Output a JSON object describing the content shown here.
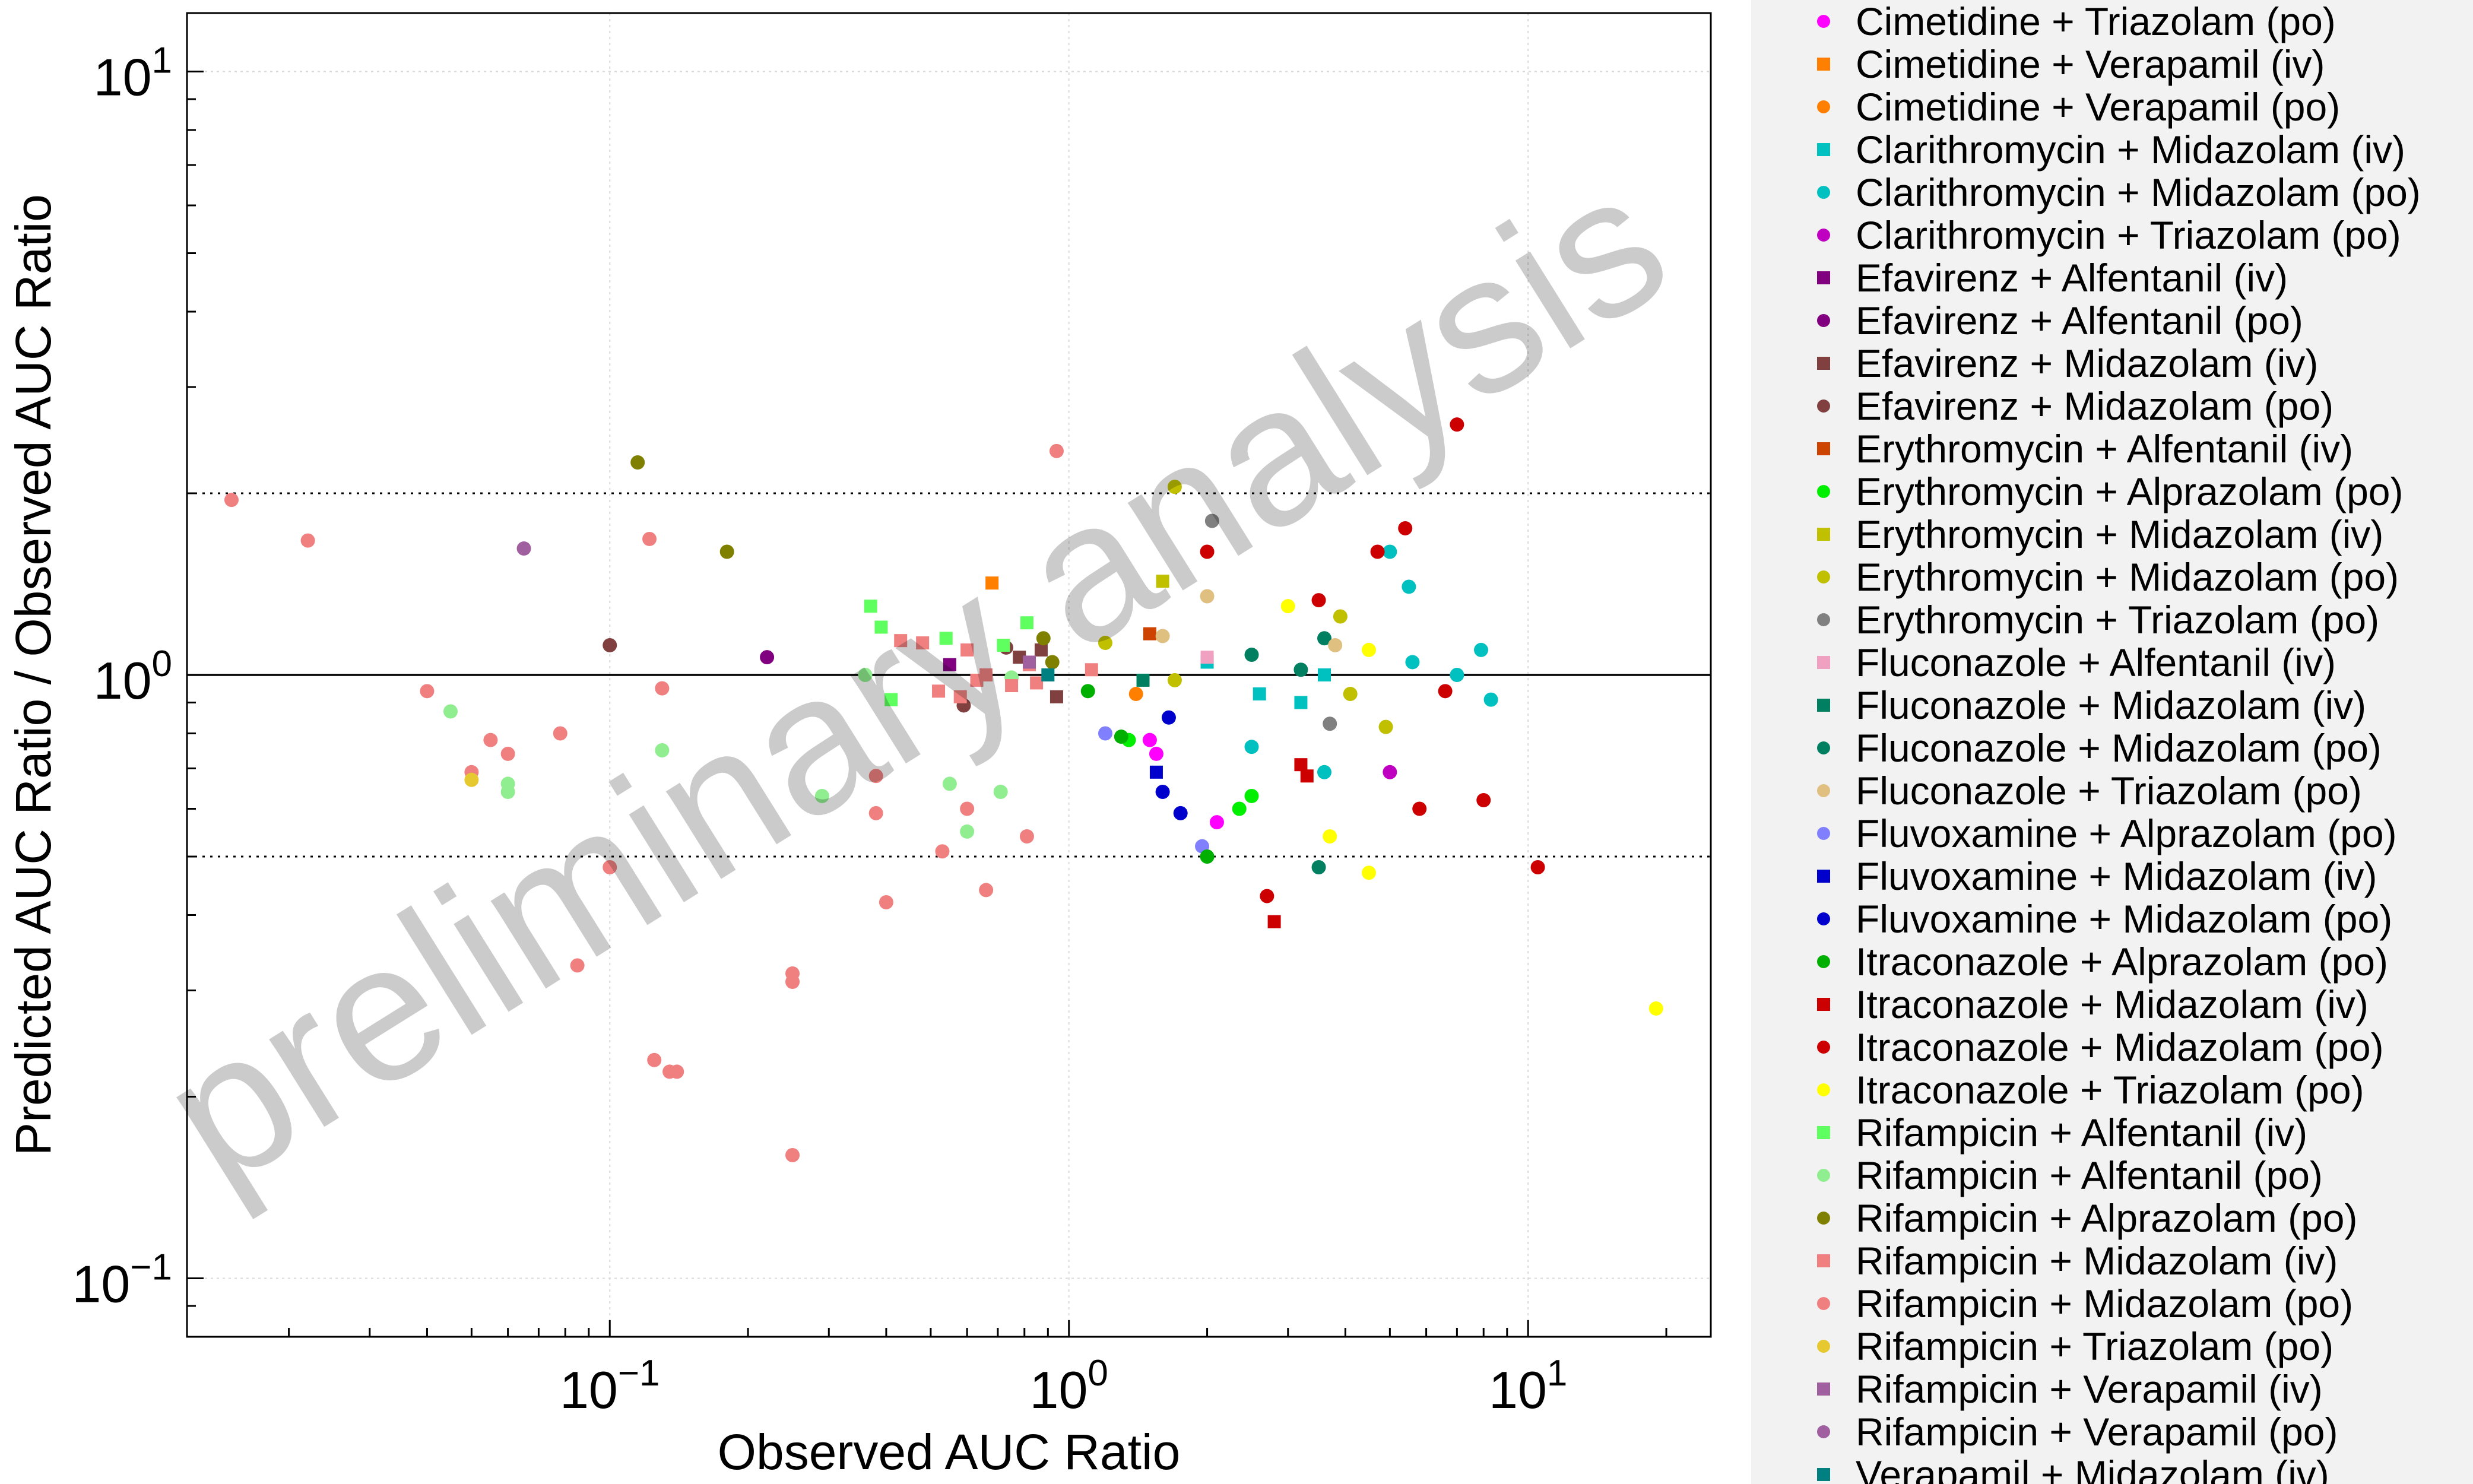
{
  "chart_data": {
    "type": "scatter",
    "xlabel": "Observed AUC Ratio",
    "ylabel": "Predicted AUC Ratio / Observed AUC Ratio",
    "xscale": "log",
    "yscale": "log",
    "xlim": [
      0.012,
      25
    ],
    "ylim": [
      0.08,
      12.5
    ],
    "grid": true,
    "legend_position": "right, outside plot",
    "x_ticks": [
      {
        "value": 0.1,
        "base": "10",
        "exp": "−1"
      },
      {
        "value": 1,
        "base": "10",
        "exp": "0"
      },
      {
        "value": 10,
        "base": "10",
        "exp": "1"
      }
    ],
    "y_ticks": [
      {
        "value": 0.1,
        "base": "10",
        "exp": "−1"
      },
      {
        "value": 1,
        "base": "10",
        "exp": "0"
      },
      {
        "value": 10,
        "base": "10",
        "exp": "1"
      }
    ],
    "reference_lines": {
      "unity": 1,
      "dotted_bounds": [
        0.5,
        2
      ],
      "guest_curves": true
    },
    "watermark": "preliminary analysis",
    "series": [
      {
        "name": "Cimetidine + Triazolam (po)",
        "color": "#ff00ff",
        "marker": "circle",
        "points": [
          [
            1.5,
            0.78
          ],
          [
            1.55,
            0.74
          ],
          [
            2.1,
            0.57
          ]
        ]
      },
      {
        "name": "Cimetidine + Verapamil (iv)",
        "color": "#ff7f00",
        "marker": "square",
        "points": [
          [
            0.68,
            1.42
          ]
        ]
      },
      {
        "name": "Cimetidine + Verapamil (po)",
        "color": "#ff7f00",
        "marker": "circle",
        "points": [
          [
            1.4,
            0.93
          ]
        ]
      },
      {
        "name": "Clarithromycin + Midazolam (iv)",
        "color": "#00c0c0",
        "marker": "square",
        "points": [
          [
            2.0,
            1.05
          ],
          [
            2.6,
            0.93
          ],
          [
            3.2,
            0.9
          ],
          [
            3.6,
            1.0
          ]
        ]
      },
      {
        "name": "Clarithromycin + Midazolam (po)",
        "color": "#00c0c0",
        "marker": "circle",
        "points": [
          [
            5.0,
            1.6
          ],
          [
            5.5,
            1.4
          ],
          [
            5.6,
            1.05
          ],
          [
            7.0,
            1.0
          ],
          [
            7.9,
            1.1
          ],
          [
            8.3,
            0.91
          ],
          [
            2.5,
            0.76
          ],
          [
            3.6,
            0.69
          ]
        ]
      },
      {
        "name": "Clarithromycin + Triazolam (po)",
        "color": "#c000c0",
        "marker": "circle",
        "points": [
          [
            5.0,
            0.69
          ]
        ]
      },
      {
        "name": "Efavirenz + Alfentanil (iv)",
        "color": "#800080",
        "marker": "square",
        "points": [
          [
            0.55,
            1.04
          ]
        ]
      },
      {
        "name": "Efavirenz + Alfentanil (po)",
        "color": "#800080",
        "marker": "circle",
        "points": [
          [
            0.22,
            1.07
          ]
        ]
      },
      {
        "name": "Efavirenz + Midazolam (iv)",
        "color": "#804040",
        "marker": "square",
        "points": [
          [
            0.78,
            1.07
          ],
          [
            0.94,
            0.92
          ],
          [
            0.87,
            1.1
          ]
        ]
      },
      {
        "name": "Efavirenz + Midazolam (po)",
        "color": "#804040",
        "marker": "circle",
        "points": [
          [
            0.1,
            1.12
          ],
          [
            0.59,
            0.89
          ],
          [
            0.73,
            1.11
          ]
        ]
      },
      {
        "name": "Erythromycin + Alfentanil (iv)",
        "color": "#cc4400",
        "marker": "square",
        "points": [
          [
            1.5,
            1.17
          ]
        ]
      },
      {
        "name": "Erythromycin + Alprazolam (po)",
        "color": "#00ee00",
        "marker": "circle",
        "points": [
          [
            1.35,
            0.78
          ],
          [
            2.35,
            0.6
          ],
          [
            2.5,
            0.63
          ]
        ]
      },
      {
        "name": "Erythromycin + Midazolam (iv)",
        "color": "#c0c000",
        "marker": "square",
        "points": [
          [
            1.6,
            1.43
          ]
        ]
      },
      {
        "name": "Erythromycin + Midazolam (po)",
        "color": "#c0c000",
        "marker": "circle",
        "points": [
          [
            1.7,
            2.05
          ],
          [
            1.7,
            0.98
          ],
          [
            1.2,
            1.13
          ],
          [
            3.9,
            1.25
          ],
          [
            4.1,
            0.93
          ],
          [
            4.9,
            0.82
          ]
        ]
      },
      {
        "name": "Erythromycin + Triazolam (po)",
        "color": "#808080",
        "marker": "circle",
        "points": [
          [
            2.05,
            1.8
          ],
          [
            3.7,
            0.83
          ]
        ]
      },
      {
        "name": "Fluconazole + Alfentanil (iv)",
        "color": "#f0a0c0",
        "marker": "square",
        "points": [
          [
            2.0,
            1.07
          ]
        ]
      },
      {
        "name": "Fluconazole + Midazolam (iv)",
        "color": "#008060",
        "marker": "square",
        "points": [
          [
            1.45,
            0.98
          ]
        ]
      },
      {
        "name": "Fluconazole + Midazolam (po)",
        "color": "#008060",
        "marker": "circle",
        "points": [
          [
            2.5,
            1.08
          ],
          [
            3.2,
            1.02
          ],
          [
            3.6,
            1.15
          ],
          [
            3.5,
            0.48
          ]
        ]
      },
      {
        "name": "Fluconazole + Triazolam (po)",
        "color": "#e0c080",
        "marker": "circle",
        "points": [
          [
            1.6,
            1.16
          ],
          [
            2.0,
            1.35
          ],
          [
            3.8,
            1.12
          ]
        ]
      },
      {
        "name": "Fluvoxamine + Alprazolam (po)",
        "color": "#8080ff",
        "marker": "circle",
        "points": [
          [
            1.2,
            0.8
          ],
          [
            1.95,
            0.52
          ]
        ]
      },
      {
        "name": "Fluvoxamine + Midazolam (iv)",
        "color": "#0000cc",
        "marker": "square",
        "points": [
          [
            1.55,
            0.69
          ]
        ]
      },
      {
        "name": "Fluvoxamine + Midazolam (po)",
        "color": "#0000cc",
        "marker": "circle",
        "points": [
          [
            1.65,
            0.85
          ],
          [
            1.6,
            0.64
          ],
          [
            1.75,
            0.59
          ]
        ]
      },
      {
        "name": "Itraconazole + Alprazolam (po)",
        "color": "#00b000",
        "marker": "circle",
        "points": [
          [
            1.1,
            0.94
          ],
          [
            1.3,
            0.79
          ],
          [
            2.0,
            0.5
          ]
        ]
      },
      {
        "name": "Itraconazole + Midazolam (iv)",
        "color": "#cc0000",
        "marker": "square",
        "points": [
          [
            2.8,
            0.39
          ],
          [
            3.2,
            0.71
          ],
          [
            3.3,
            0.68
          ]
        ]
      },
      {
        "name": "Itraconazole + Midazolam (po)",
        "color": "#cc0000",
        "marker": "circle",
        "points": [
          [
            2.0,
            1.6
          ],
          [
            2.7,
            0.43
          ],
          [
            3.5,
            1.33
          ],
          [
            4.7,
            1.6
          ],
          [
            5.4,
            1.75
          ],
          [
            5.8,
            0.6
          ],
          [
            6.6,
            0.94
          ],
          [
            7.0,
            2.6
          ],
          [
            8.0,
            0.62
          ],
          [
            10.5,
            0.48
          ]
        ]
      },
      {
        "name": "Itraconazole + Triazolam (po)",
        "color": "#ffff00",
        "marker": "circle",
        "points": [
          [
            3.0,
            1.3
          ],
          [
            4.5,
            1.1
          ],
          [
            3.7,
            0.54
          ],
          [
            4.5,
            0.47
          ],
          [
            19.0,
            0.28
          ]
        ]
      },
      {
        "name": "Rifampicin + Alfentanil (iv)",
        "color": "#60ff60",
        "marker": "square",
        "points": [
          [
            0.37,
            1.3
          ],
          [
            0.39,
            1.2
          ],
          [
            0.54,
            1.15
          ],
          [
            0.72,
            1.12
          ],
          [
            0.41,
            0.91
          ],
          [
            0.81,
            1.22
          ]
        ]
      },
      {
        "name": "Rifampicin + Alfentanil (po)",
        "color": "#90ee90",
        "marker": "circle",
        "points": [
          [
            0.045,
            0.87
          ],
          [
            0.06,
            0.66
          ],
          [
            0.06,
            0.64
          ],
          [
            0.13,
            0.75
          ],
          [
            0.29,
            0.63
          ],
          [
            0.36,
            1.0
          ],
          [
            0.55,
            0.66
          ],
          [
            0.6,
            0.55
          ],
          [
            0.71,
            0.64
          ],
          [
            0.75,
            0.99
          ]
        ]
      },
      {
        "name": "Rifampicin + Alprazolam (po)",
        "color": "#808000",
        "marker": "circle",
        "points": [
          [
            0.115,
            2.25
          ],
          [
            0.18,
            1.6
          ],
          [
            0.88,
            1.15
          ],
          [
            0.92,
            1.05
          ]
        ]
      },
      {
        "name": "Rifampicin + Midazolam (iv)",
        "color": "#f08080",
        "marker": "square",
        "points": [
          [
            0.43,
            1.14
          ],
          [
            0.48,
            1.13
          ],
          [
            0.52,
            0.94
          ],
          [
            0.58,
            0.92
          ],
          [
            0.6,
            1.1
          ],
          [
            0.63,
            0.98
          ],
          [
            0.66,
            1.0
          ],
          [
            0.75,
            0.96
          ],
          [
            0.82,
            1.04
          ],
          [
            0.85,
            0.97
          ],
          [
            1.12,
            1.02
          ]
        ]
      },
      {
        "name": "Rifampicin + Midazolam (po)",
        "color": "#f08080",
        "marker": "circle",
        "points": [
          [
            0.015,
            1.95
          ],
          [
            0.022,
            1.67
          ],
          [
            0.04,
            0.94
          ],
          [
            0.05,
            0.69
          ],
          [
            0.055,
            0.78
          ],
          [
            0.06,
            0.74
          ],
          [
            0.078,
            0.8
          ],
          [
            0.085,
            0.33
          ],
          [
            0.1,
            0.48
          ],
          [
            0.122,
            1.68
          ],
          [
            0.125,
            0.23
          ],
          [
            0.13,
            0.95
          ],
          [
            0.135,
            0.22
          ],
          [
            0.14,
            0.22
          ],
          [
            0.25,
            0.32
          ],
          [
            0.25,
            0.31
          ],
          [
            0.25,
            0.16
          ],
          [
            0.38,
            0.68
          ],
          [
            0.38,
            0.59
          ],
          [
            0.4,
            0.42
          ],
          [
            0.53,
            0.51
          ],
          [
            0.6,
            0.6
          ],
          [
            0.66,
            0.44
          ],
          [
            0.81,
            0.54
          ],
          [
            0.94,
            2.35
          ]
        ]
      },
      {
        "name": "Rifampicin + Triazolam (po)",
        "color": "#e6c830",
        "marker": "circle",
        "points": [
          [
            0.05,
            0.67
          ]
        ]
      },
      {
        "name": "Rifampicin + Verapamil (iv)",
        "color": "#a060a0",
        "marker": "square",
        "points": [
          [
            0.82,
            1.05
          ]
        ]
      },
      {
        "name": "Rifampicin + Verapamil (po)",
        "color": "#a060a0",
        "marker": "circle",
        "points": [
          [
            0.065,
            1.62
          ]
        ]
      },
      {
        "name": "Verapamil + Midazolam (iv)",
        "color": "#008080",
        "marker": "square",
        "points": [
          [
            0.9,
            1.0
          ]
        ]
      }
    ]
  }
}
